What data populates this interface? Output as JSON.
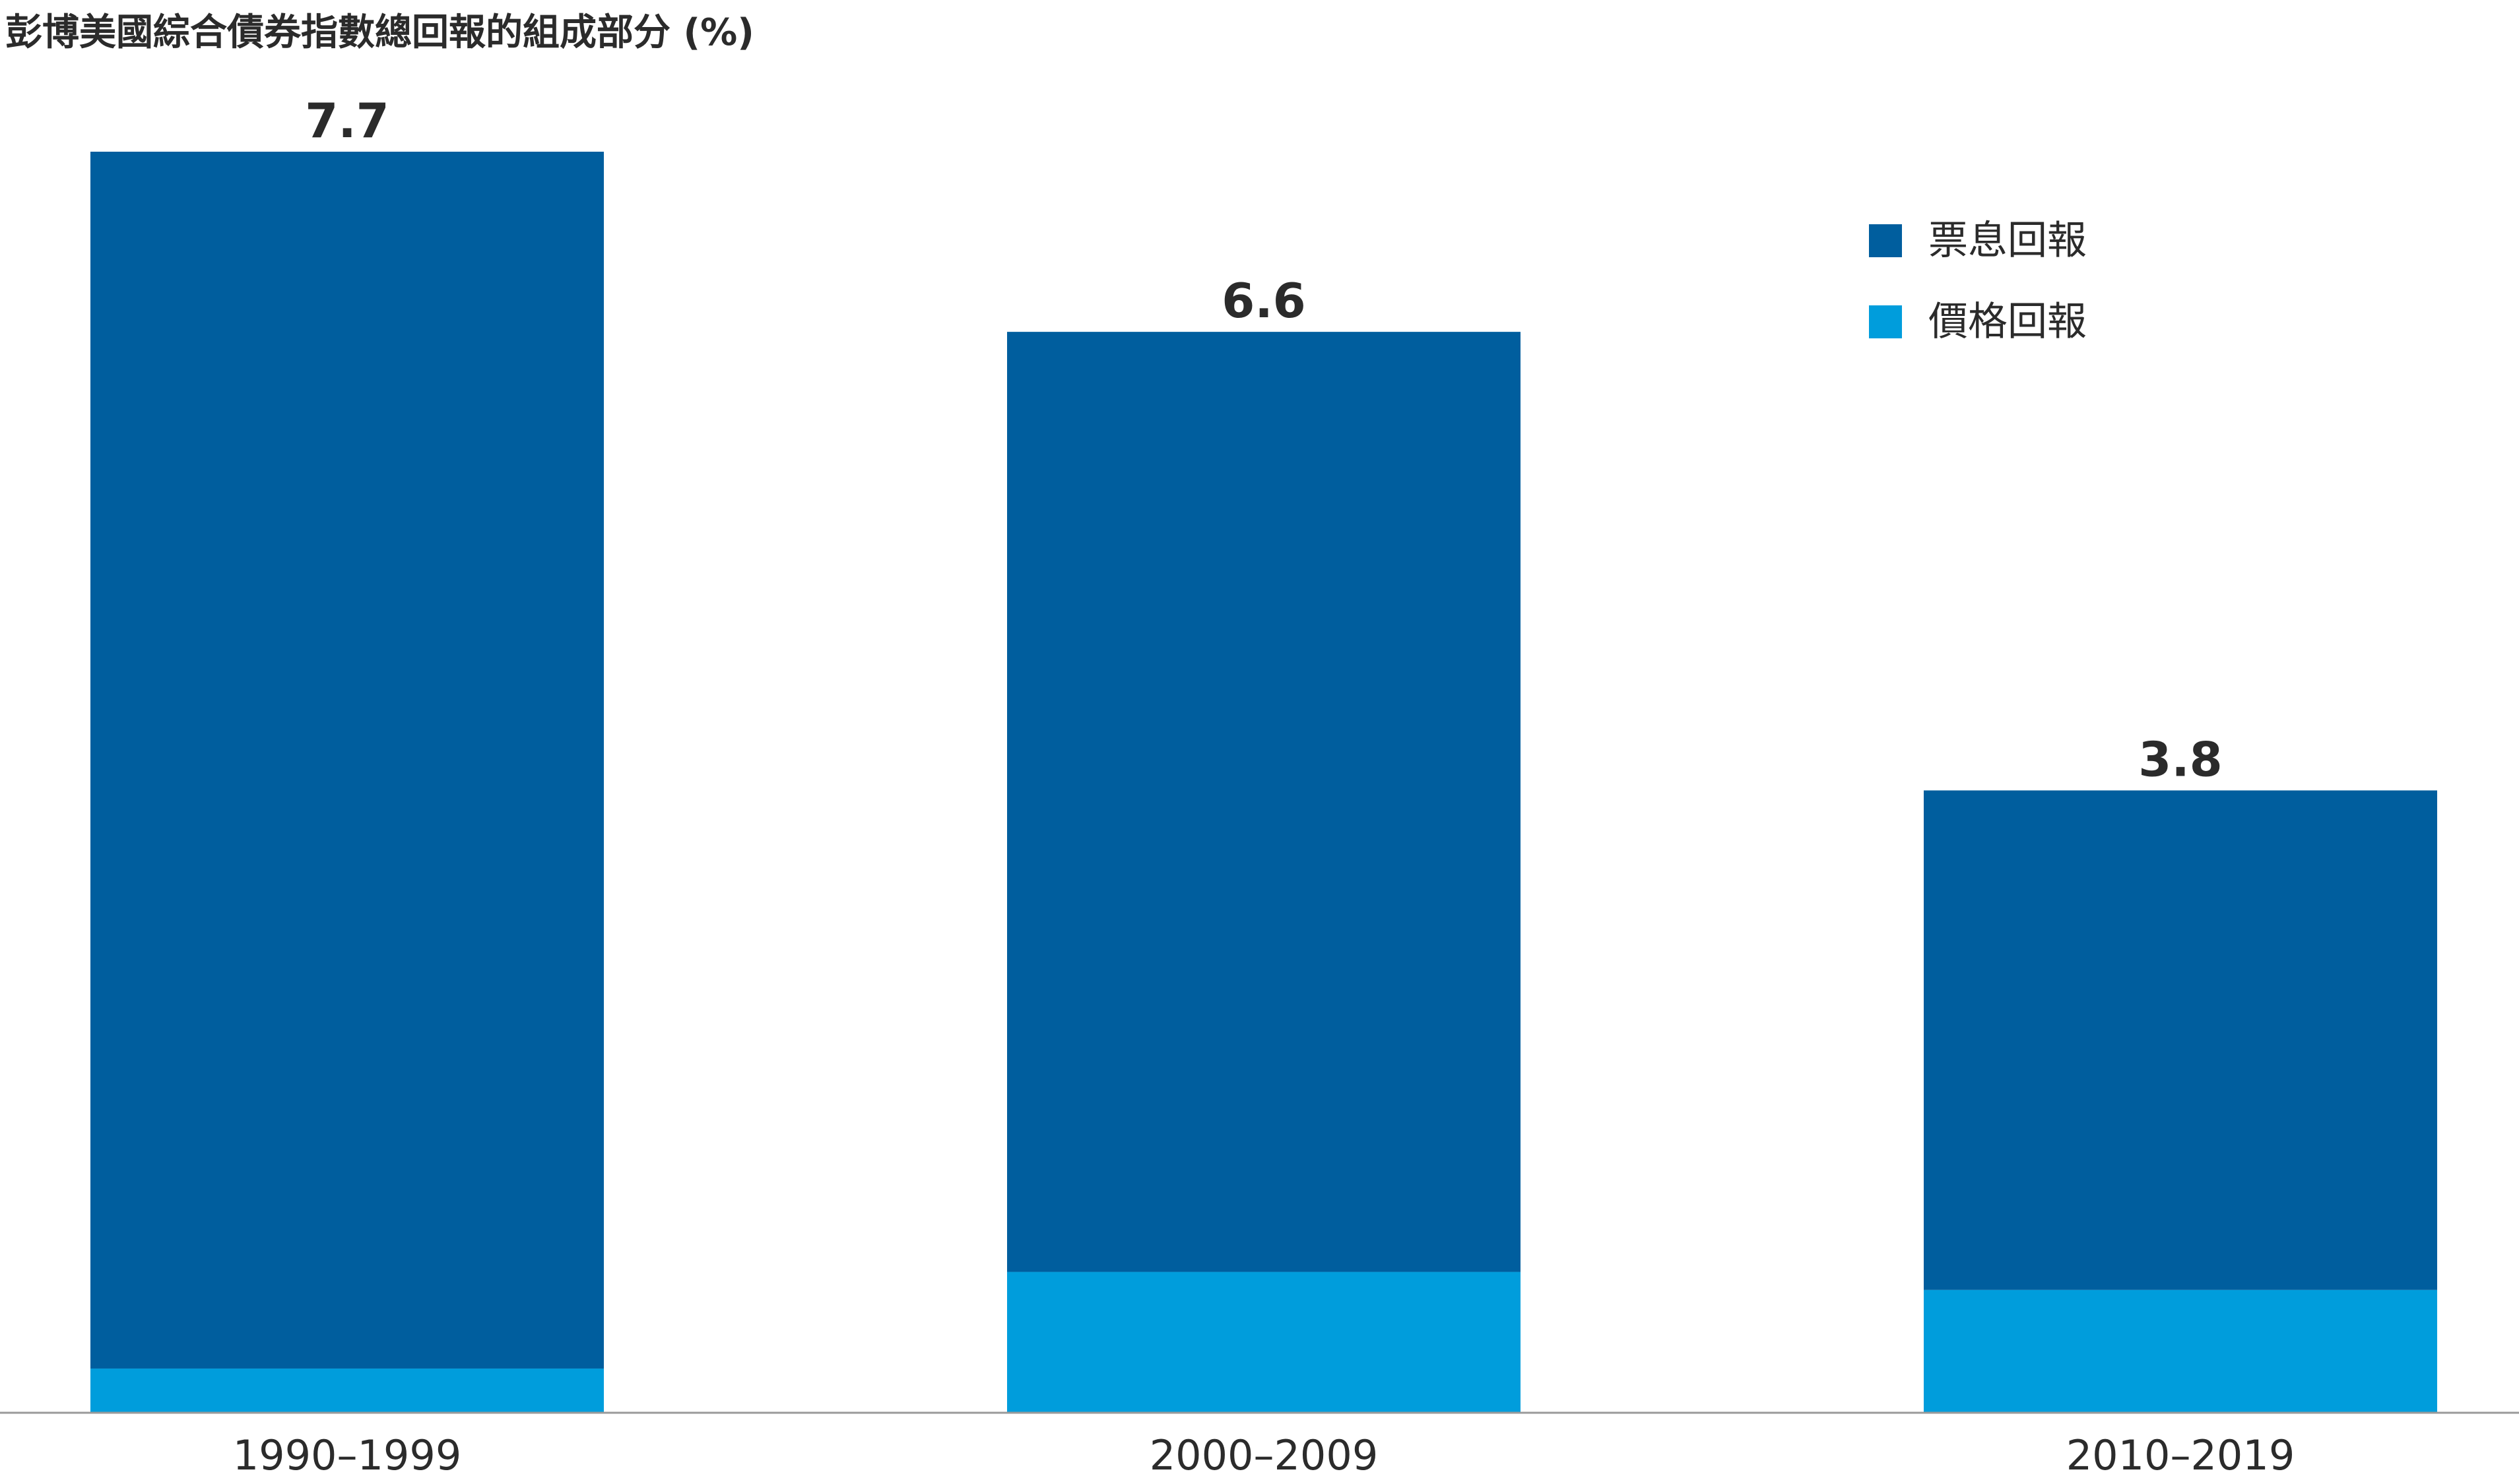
{
  "chart_data": {
    "type": "bar",
    "stacked": true,
    "title": "彭博美國綜合債券指數總回報的組成部分 (%)",
    "xlabel": "",
    "ylabel": "",
    "ylim": [
      0,
      7.7
    ],
    "grid": false,
    "legend_position": "top-right",
    "categories": [
      "1990–1999",
      "2000–2009",
      "2010–2019"
    ],
    "totals": [
      "7.7",
      "6.6",
      "3.8"
    ],
    "series": [
      {
        "name": "價格回報",
        "color": "#009ddc",
        "values": [
          0.27,
          0.86,
          0.75
        ]
      },
      {
        "name": "票息回報",
        "color": "#005e9e",
        "values": [
          7.43,
          5.74,
          3.05
        ]
      }
    ],
    "legend": [
      {
        "name": "票息回報",
        "color": "#005e9e"
      },
      {
        "name": "價格回報",
        "color": "#009ddc"
      }
    ]
  }
}
